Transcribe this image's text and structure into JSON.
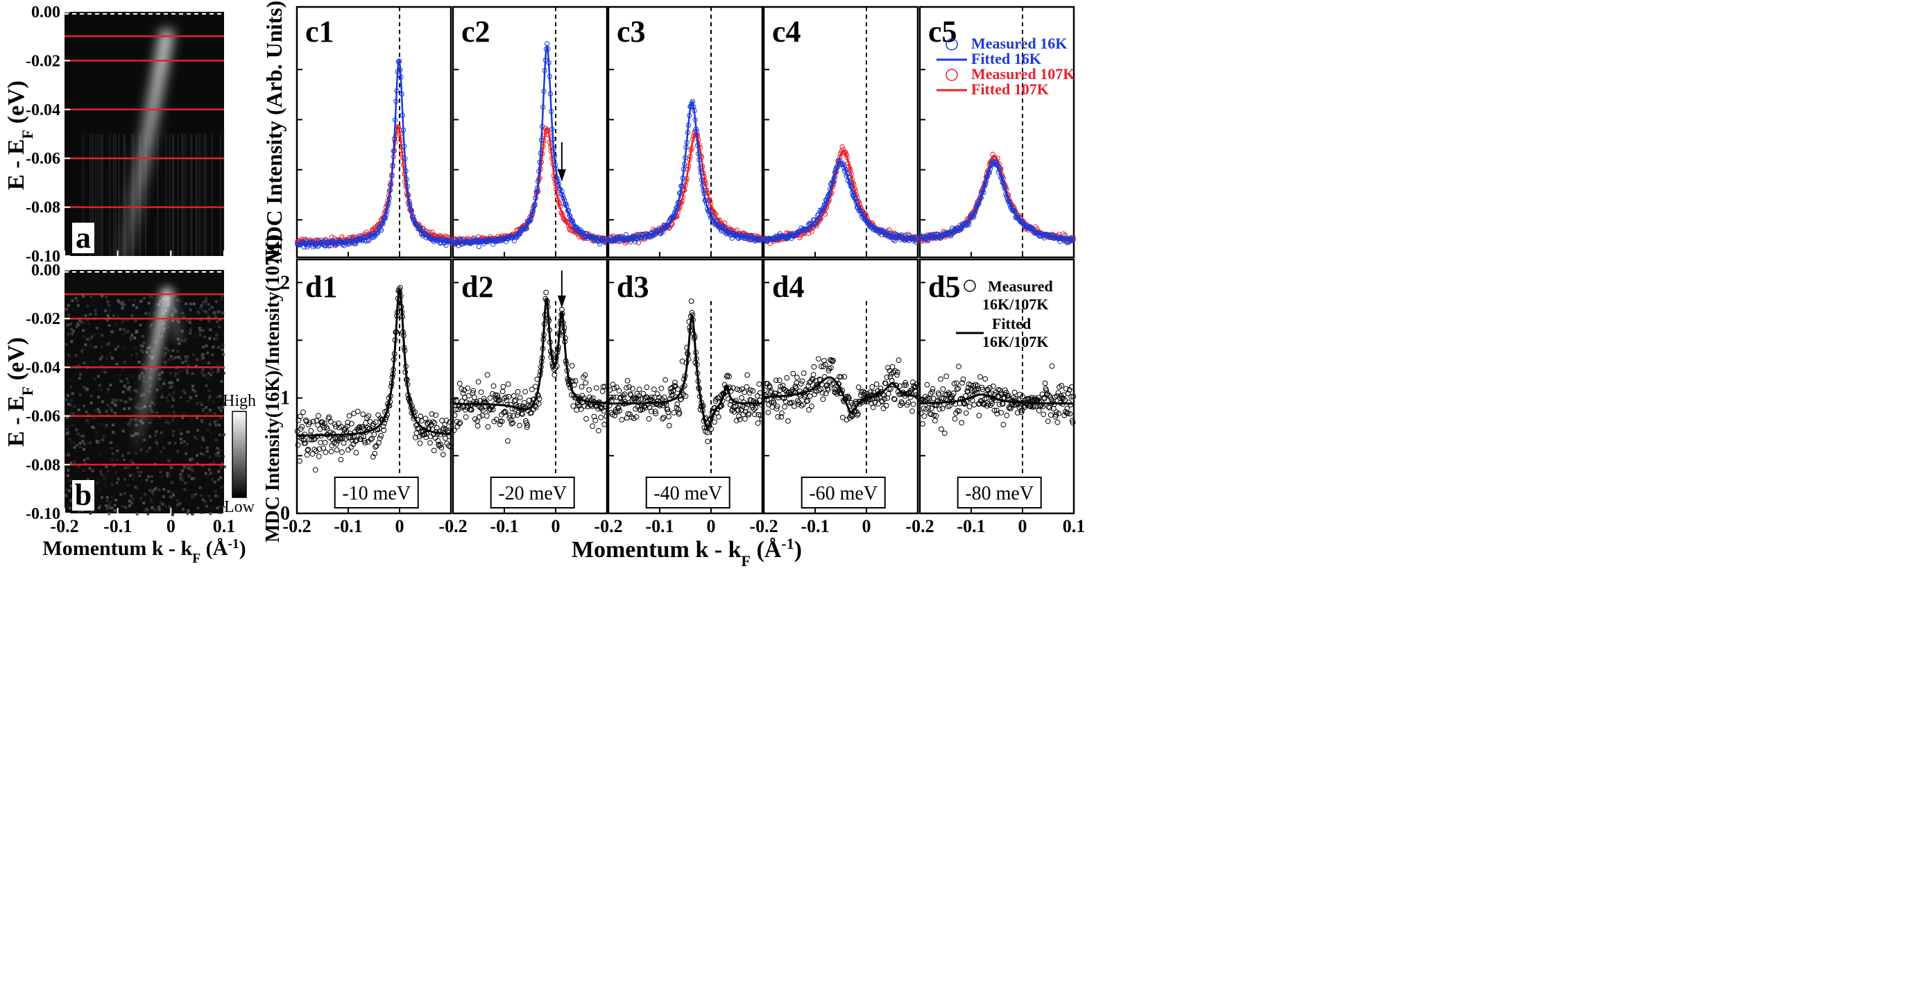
{
  "chart_data": [
    {
      "id": "a",
      "type": "heatmap",
      "panel_label": "a",
      "ylabel": "E - EF (eV)",
      "xlabel": "Momentum k - kF (Å-1)",
      "xlim": [
        -0.2,
        0.1
      ],
      "ylim": [
        -0.1,
        0.0
      ],
      "x_ticks": [
        "-0.2",
        "-0.1",
        "0",
        "0.1"
      ],
      "y_ticks": [
        "0.00",
        "-0.02",
        "-0.04",
        "-0.06",
        "-0.08",
        "-0.10"
      ],
      "cut_energies_eV": [
        -0.01,
        -0.02,
        -0.04,
        -0.06,
        -0.08
      ],
      "fermi_level_eV": 0.0
    },
    {
      "id": "b",
      "type": "heatmap",
      "panel_label": "b",
      "ylabel": "E - EF (eV)",
      "xlabel": "Momentum k - kF (Å-1)",
      "xlim": [
        -0.2,
        0.1
      ],
      "ylim": [
        -0.1,
        0.0
      ],
      "x_ticks": [
        "-0.2",
        "-0.1",
        "0",
        "0.1"
      ],
      "y_ticks": [
        "0.00",
        "-0.02",
        "-0.04",
        "-0.06",
        "-0.08",
        "-0.10"
      ],
      "cut_energies_eV": [
        -0.01,
        -0.02,
        -0.04,
        -0.06,
        -0.08
      ],
      "colorbar": {
        "high": "High",
        "low": "Low"
      }
    },
    {
      "id": "c",
      "type": "line",
      "ylabel": "MDC Intensity (Arb. Units)",
      "xlim": [
        -0.2,
        0.1
      ],
      "panels": [
        {
          "label": "c1",
          "peak_16K": [
            -0.001,
            0.92,
            0.0105
          ],
          "peak_107K": [
            -0.003,
            0.57,
            0.014
          ],
          "base_16K": 0.035,
          "base_107K": 0.045
        },
        {
          "label": "c2",
          "peak_16K": [
            -0.017,
            0.95,
            0.011
          ],
          "peak_107K": [
            -0.017,
            0.56,
            0.016
          ],
          "shoulder_16K": [
            0.012,
            0.12,
            0.02
          ],
          "base_16K": 0.04,
          "base_107K": 0.045,
          "arrow_k": 0.012
        },
        {
          "label": "c3",
          "peak_16K": [
            -0.037,
            0.69,
            0.016
          ],
          "peak_107K": [
            -0.03,
            0.53,
            0.02
          ],
          "base_16K": 0.05,
          "base_107K": 0.05
        },
        {
          "label": "c4",
          "peak_16K": [
            -0.05,
            0.39,
            0.028
          ],
          "peak_107K": [
            -0.045,
            0.45,
            0.025
          ],
          "base_16K": 0.04,
          "base_107K": 0.04
        },
        {
          "label": "c5",
          "peak_16K": [
            -0.055,
            0.39,
            0.028
          ],
          "peak_107K": [
            -0.055,
            0.42,
            0.028
          ],
          "base_16K": 0.04,
          "base_107K": 0.04
        }
      ],
      "legend": [
        {
          "kind": "marker",
          "text": "Measured  16K",
          "color": "#1a3ad8"
        },
        {
          "kind": "line",
          "text": "Fitted         16K",
          "color": "#1a3ad8"
        },
        {
          "kind": "marker",
          "text": "Measured 107K",
          "color": "#e8202a"
        },
        {
          "kind": "line",
          "text": "Fitted        107K",
          "color": "#e8202a"
        }
      ]
    },
    {
      "id": "d",
      "type": "scatter",
      "ylabel": "MDC Intensity(16K)/Intensity(107K)",
      "xlabel": "Momentum k - kF (Å-1)",
      "xlim": [
        -0.2,
        0.1
      ],
      "ylim": [
        0,
        2.2
      ],
      "y_ticks": [
        "0",
        "1",
        "2"
      ],
      "x_ticks": [
        "-0.2",
        "-0.1",
        "0",
        "0.1"
      ],
      "panels": [
        {
          "label": "d1",
          "energy": "-10 meV",
          "base": 0.67,
          "features": [
            [
              0.0,
              1.27,
              0.011
            ]
          ]
        },
        {
          "label": "d2",
          "energy": "-20 meV",
          "base": 0.95,
          "features": [
            [
              -0.018,
              0.9,
              0.008
            ],
            [
              0.012,
              0.75,
              0.008
            ],
            [
              -0.05,
              -0.1,
              0.03
            ]
          ],
          "arrow_k": 0.012
        },
        {
          "label": "d3",
          "energy": "-40 meV",
          "base": 0.95,
          "features": [
            [
              -0.037,
              0.8,
              0.009
            ],
            [
              -0.008,
              -0.28,
              0.012
            ],
            [
              0.03,
              0.17,
              0.006
            ]
          ]
        },
        {
          "label": "d4",
          "energy": "-60 meV",
          "base": 1.0,
          "features": [
            [
              -0.07,
              0.2,
              0.03
            ],
            [
              -0.03,
              -0.2,
              0.015
            ],
            [
              0.05,
              0.12,
              0.015
            ]
          ]
        },
        {
          "label": "d5",
          "energy": "-80 meV",
          "base": 0.95,
          "features": [
            [
              -0.08,
              0.08,
              0.03
            ]
          ]
        }
      ],
      "legend": [
        {
          "kind": "marker",
          "text": "Measured"
        },
        {
          "kind": "marker-sub",
          "text": "16K/107K"
        },
        {
          "kind": "line",
          "text": "Fitted"
        },
        {
          "kind": "line-sub",
          "text": "16K/107K"
        }
      ]
    }
  ]
}
